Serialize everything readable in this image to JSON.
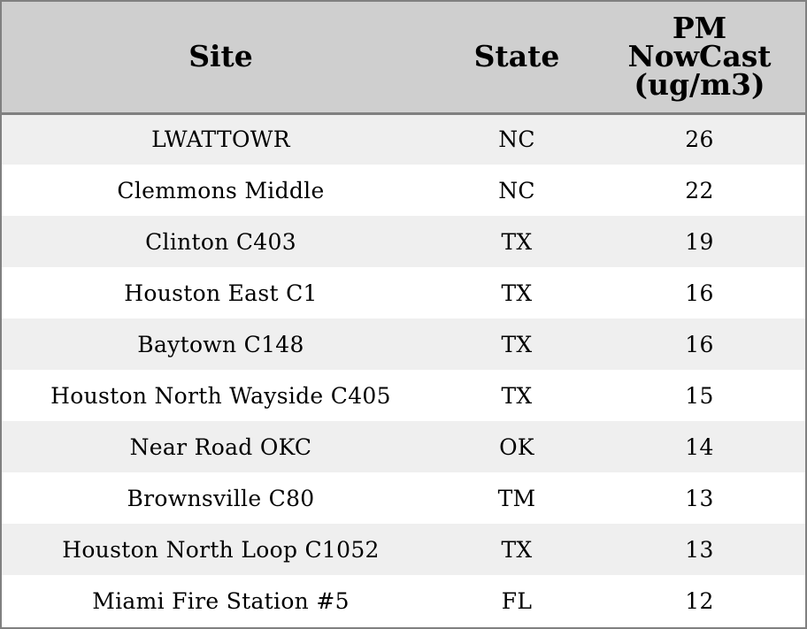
{
  "chart_data": {
    "type": "table",
    "columns": [
      "Site",
      "State",
      "PM NowCast (ug/m3)"
    ],
    "header_lines": [
      [
        "Site"
      ],
      [
        "State"
      ],
      [
        "PM",
        "NowCast",
        "(ug/m3)"
      ]
    ],
    "rows": [
      [
        "LWATTOWR",
        "NC",
        26
      ],
      [
        "Clemmons Middle",
        "NC",
        22
      ],
      [
        "Clinton C403",
        "TX",
        19
      ],
      [
        "Houston East C1",
        "TX",
        16
      ],
      [
        "Baytown C148",
        "TX",
        16
      ],
      [
        "Houston North Wayside C405",
        "TX",
        15
      ],
      [
        "Near Road OKC",
        "OK",
        14
      ],
      [
        "Brownsville C80",
        "TM",
        13
      ],
      [
        "Houston North Loop C1052",
        "TX",
        13
      ],
      [
        "Miami Fire Station #5",
        "FL",
        12
      ]
    ]
  },
  "colors": {
    "header_background": "#cfcfcf",
    "row_shaded": "#efefef",
    "row_plain": "#ffffff",
    "border": "#808080",
    "text": "#000000"
  }
}
